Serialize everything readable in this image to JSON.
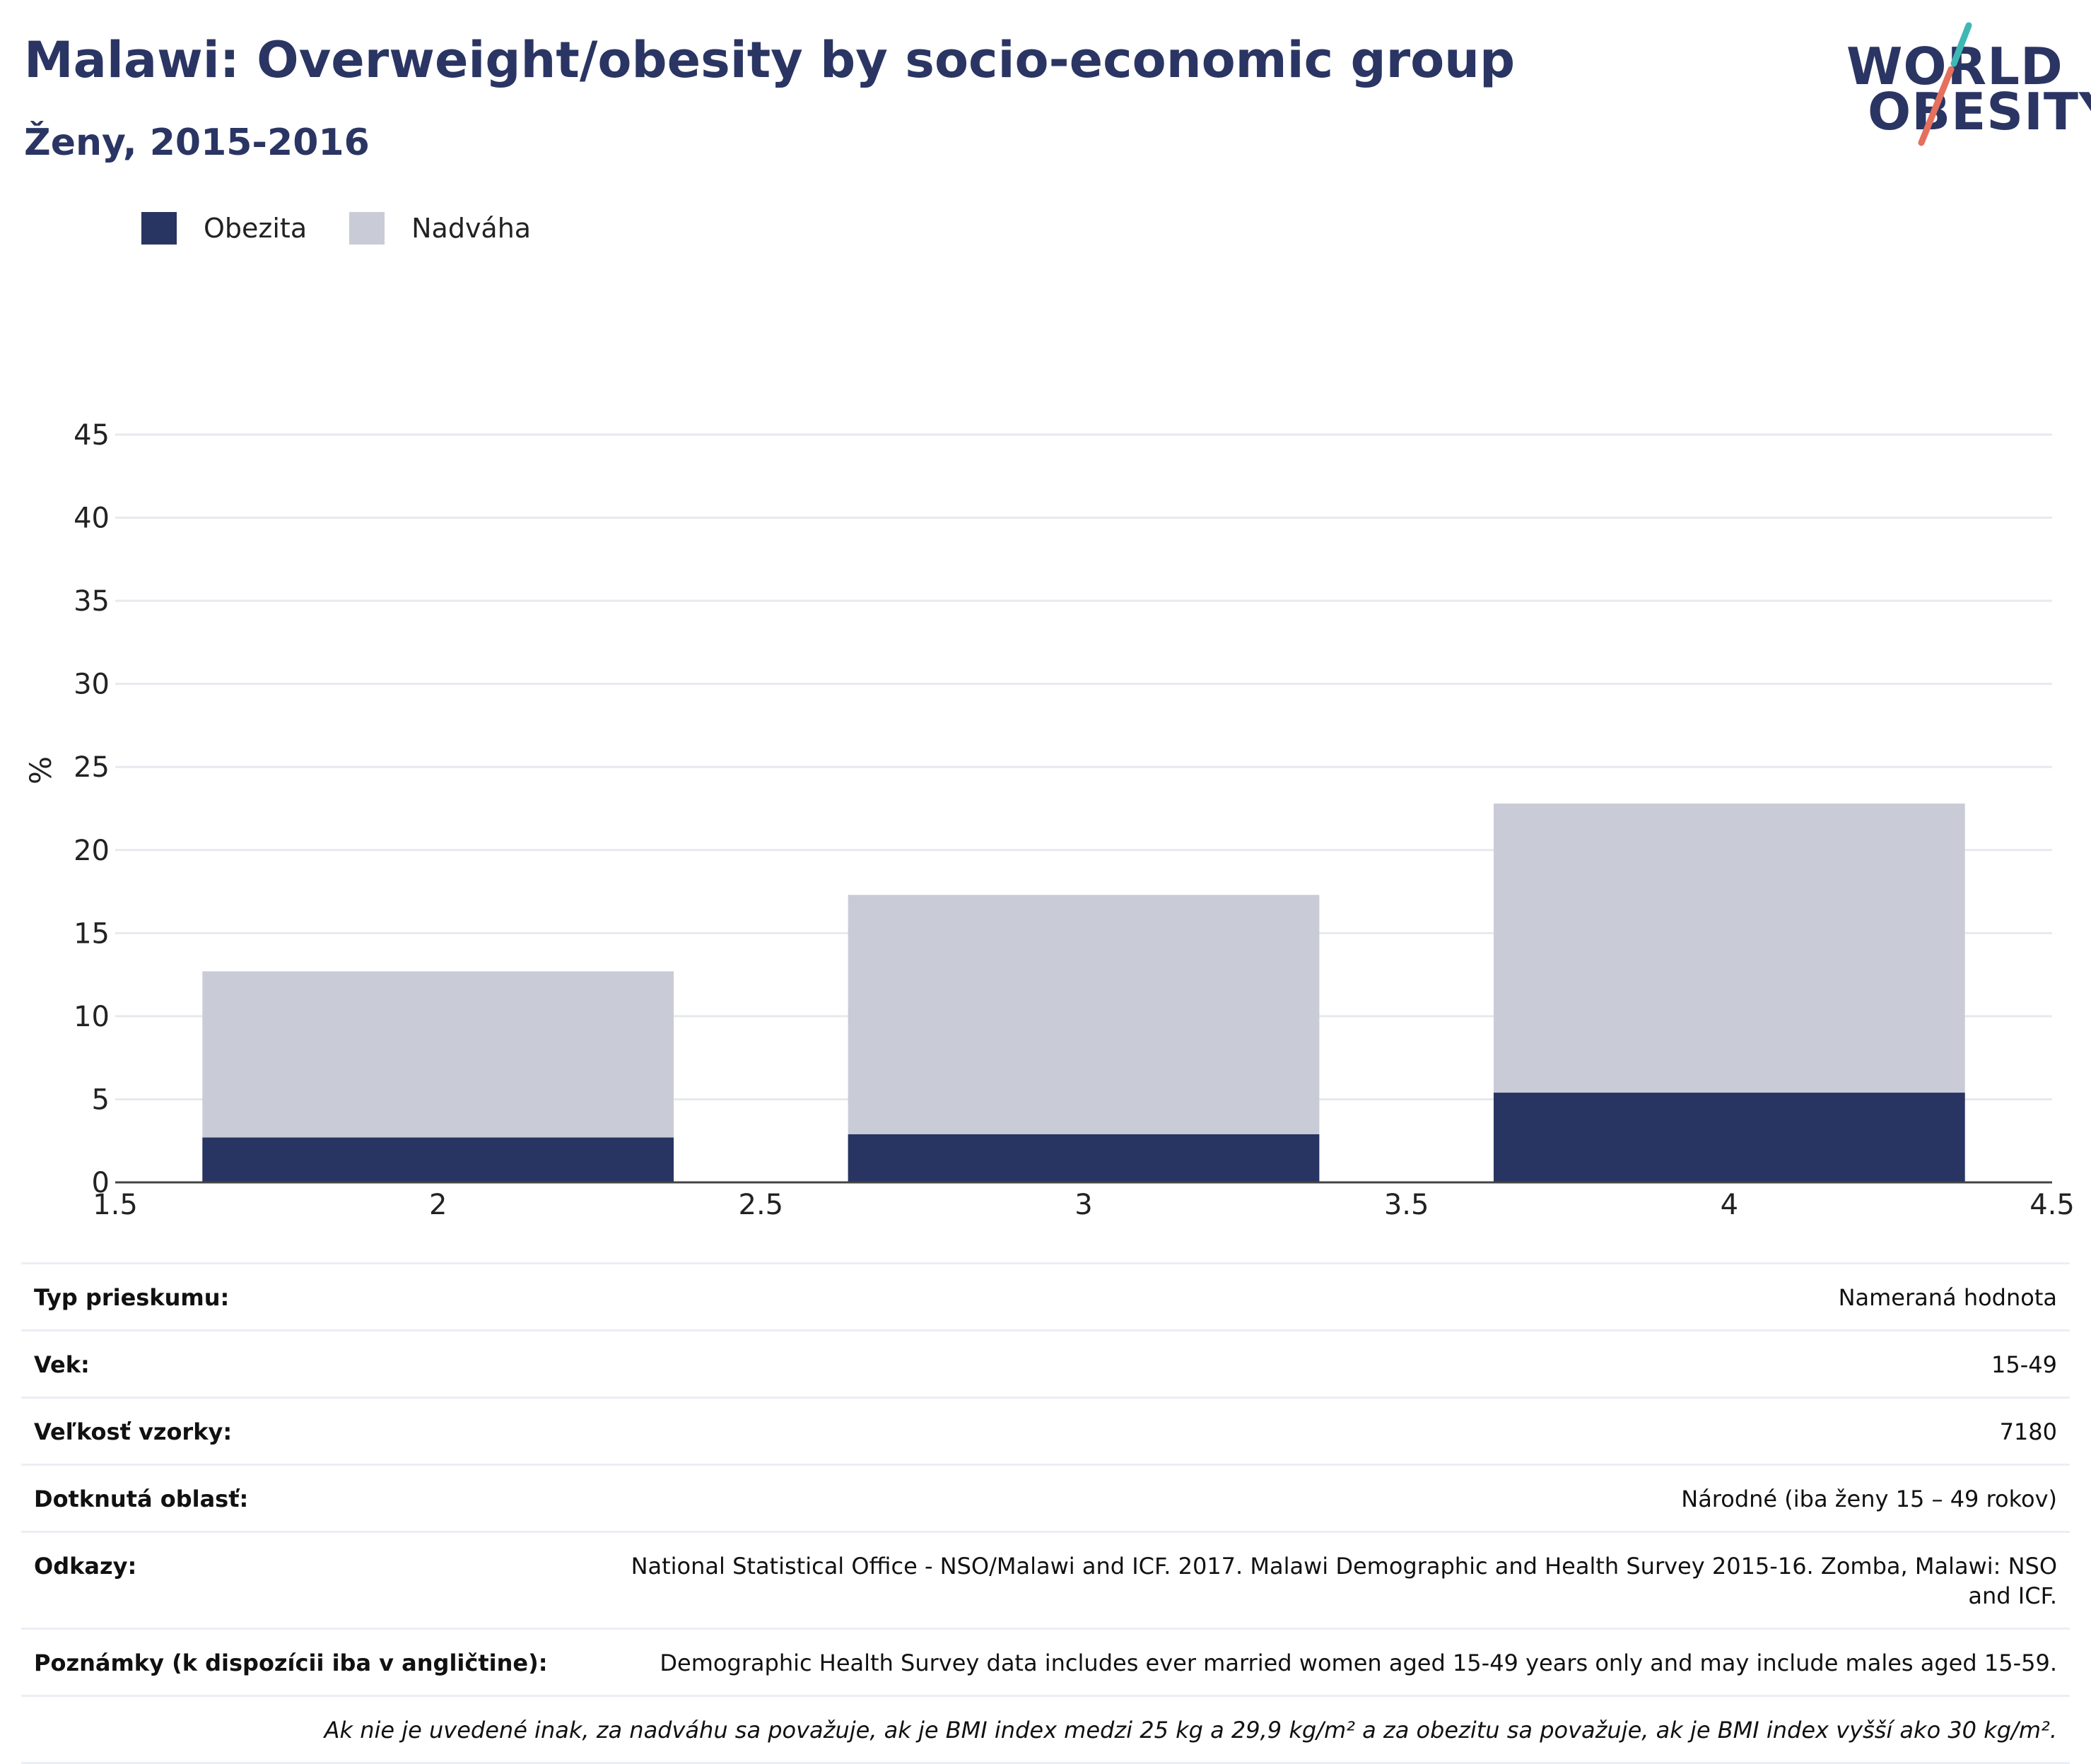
{
  "header": {
    "title": "Malawi: Overweight/obesity by socio-economic group",
    "subtitle": "Ženy, 2015-2016"
  },
  "logo": {
    "line1": "WORLD",
    "line2": "OBESITY",
    "text_color": "#2a3563",
    "slash_top_color": "#3fb8b4",
    "slash_bottom_color": "#e5705e"
  },
  "legend": [
    {
      "label": "Obezita",
      "color": "#283462"
    },
    {
      "label": "Nadváha",
      "color": "#c9ccd6"
    }
  ],
  "chart_data": {
    "type": "bar",
    "stacked": true,
    "x": [
      2,
      3,
      4
    ],
    "xlim": [
      1.5,
      4.5
    ],
    "x_ticks": [
      "1.5",
      "2",
      "2.5",
      "3",
      "3.5",
      "4",
      "4.5"
    ],
    "x_tick_values": [
      1.5,
      2,
      2.5,
      3,
      3.5,
      4,
      4.5
    ],
    "ylim": [
      0,
      45
    ],
    "y_ticks": [
      "0",
      "5",
      "10",
      "15",
      "20",
      "25",
      "30",
      "35",
      "40",
      "45"
    ],
    "y_tick_values": [
      0,
      5,
      10,
      15,
      20,
      25,
      30,
      35,
      40,
      45
    ],
    "ylabel": "%",
    "xlabel": "",
    "grid": true,
    "legend_position": "top-left",
    "series": [
      {
        "name": "Obezita",
        "color": "#283462",
        "values": [
          2.7,
          2.9,
          5.4
        ]
      },
      {
        "name": "Nadváha",
        "color": "#c9ccd6",
        "values": [
          10.0,
          14.4,
          17.4
        ]
      }
    ]
  },
  "info": {
    "rows": [
      {
        "label": "Typ prieskumu:",
        "value": "Nameraná hodnota"
      },
      {
        "label": "Vek:",
        "value": "15-49"
      },
      {
        "label": "Veľkosť vzorky:",
        "value": "7180"
      },
      {
        "label": "Dotknutá oblasť:",
        "value": "Národné (iba ženy 15 – 49 rokov)"
      },
      {
        "label": "Odkazy:",
        "value": "National Statistical Office - NSO/Malawi and ICF. 2017. Malawi Demographic and Health Survey 2015-16. Zomba, Malawi: NSO and ICF."
      },
      {
        "label": "Poznámky (k dispozícii iba v angličtine):",
        "value": "Demographic Health Survey data includes ever married women aged 15-49 years only and may include males aged 15-59."
      }
    ],
    "note": "Ak nie je uvedené inak, za nadváhu sa považuje, ak je BMI index medzi 25 kg a 29,9 kg/m² a za obezitu sa považuje, ak je BMI index vyšší ako 30 kg/m²."
  }
}
